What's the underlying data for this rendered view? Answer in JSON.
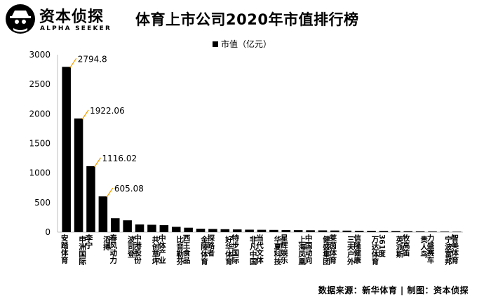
{
  "brand": {
    "name": "资本侦探",
    "subtitle": "ALPHA SEEKER"
  },
  "footer": {
    "source": "数据来源：新华体育 | 制图：资本侦探"
  },
  "colors": {
    "bar": "#000000",
    "leader": "#f5a000",
    "axis": "#bfbfbf"
  },
  "chart_data": {
    "type": "bar",
    "title": "体育上市公司2020年市值排行榜",
    "legend_position": "top",
    "grid": false,
    "ylim": [
      0,
      3000
    ],
    "yticks": [
      0,
      500,
      1000,
      1500,
      2000,
      2500,
      3000
    ],
    "categories": [
      "安踏体育",
      "申洲国际",
      "李宁",
      "滔搏",
      "春风动力",
      "波司登",
      "中港股份",
      "共创草坪",
      "中体产业",
      "比音勒芬",
      "西王食品",
      "金陵体育",
      "探路者",
      "好华体育",
      "特步国际",
      "非凡中国",
      "当代文体",
      "华夏科技",
      "星辉娱乐",
      "上海凤凰",
      "中国动向",
      "健盛集团",
      "莱茵体育",
      "三夫户外",
      "信隆健康",
      "万达体育",
      "361度",
      "英派斯",
      "牧高笛",
      "贵人鸟",
      "力盛赛车",
      "宁波富邦",
      "智美体育"
    ],
    "series": [
      {
        "name": "市值（亿元）",
        "values": [
          2794.8,
          1922.06,
          1116.02,
          605.08,
          235,
          200,
          130,
          125,
          118,
          90,
          75,
          58,
          54,
          50,
          46,
          42,
          40,
          38,
          36,
          34,
          32,
          30,
          28,
          26,
          24,
          22,
          20,
          18,
          15,
          13,
          11,
          9,
          7
        ]
      }
    ],
    "data_labels": [
      {
        "index": 0,
        "text": "2794.8"
      },
      {
        "index": 1,
        "text": "1922.06"
      },
      {
        "index": 2,
        "text": "1116.02"
      },
      {
        "index": 3,
        "text": "605.08"
      }
    ]
  }
}
